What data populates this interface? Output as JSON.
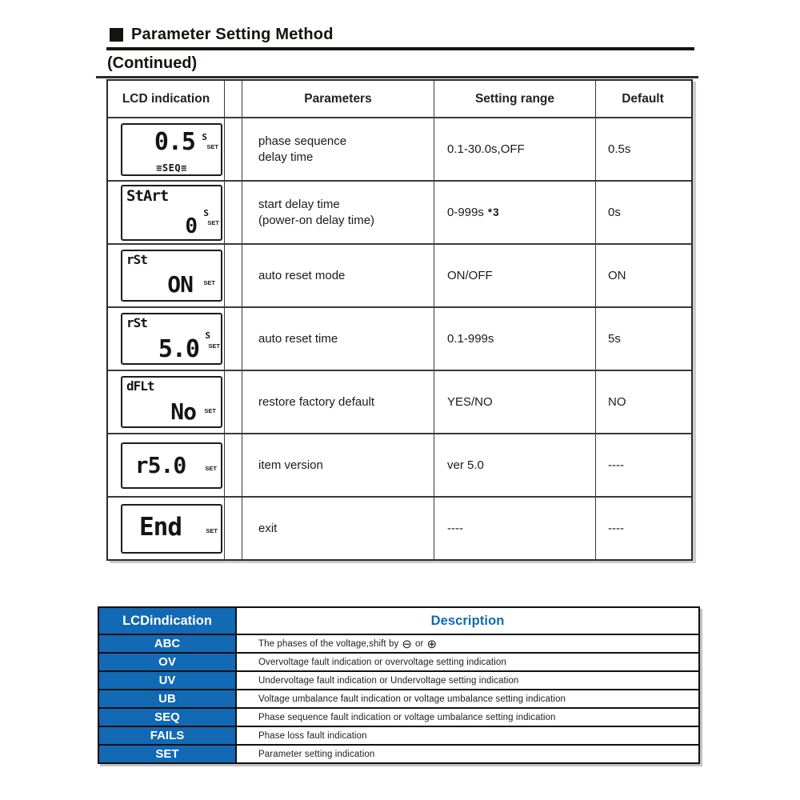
{
  "accent_blue": "#1269b4",
  "header": {
    "title": "Parameter Setting Method",
    "continued": "(Continued)"
  },
  "table1": {
    "headers": {
      "lcd": "LCD indication",
      "parameters": "Parameters",
      "range": "Setting range",
      "default": "Default"
    },
    "rows": [
      {
        "lcd": {
          "main": "0.5",
          "unit": "S",
          "set": "SET",
          "seq": "≡SEQ≡"
        },
        "param_lines": [
          "phase sequence",
          "delay time"
        ],
        "range": "0.1-30.0s,OFF",
        "default": "0.5s"
      },
      {
        "lcd": {
          "top": "StArt",
          "main": "0",
          "unit": "S",
          "set": "SET"
        },
        "param_lines": [
          "start delay time",
          "(power-on delay time)"
        ],
        "range": "0-999s",
        "range_sup": "*3",
        "default": "0s"
      },
      {
        "lcd": {
          "top": "rSt",
          "main": "ON",
          "set": "SET"
        },
        "param_lines": [
          "auto reset mode"
        ],
        "range": "ON/OFF",
        "default": "ON"
      },
      {
        "lcd": {
          "top": "rSt",
          "main": "5.0",
          "unit": "S",
          "set": "SET"
        },
        "param_lines": [
          "auto reset time"
        ],
        "range": "0.1-999s",
        "default": "5s"
      },
      {
        "lcd": {
          "top": "dFLt",
          "main": "No",
          "set": "SET"
        },
        "param_lines": [
          "restore factory default"
        ],
        "range": "YES/NO",
        "default": "NO"
      },
      {
        "lcd": {
          "main": "r5.0",
          "set": "SET"
        },
        "param_lines": [
          "item version"
        ],
        "range": "ver 5.0",
        "default": "----"
      },
      {
        "lcd": {
          "main": "End",
          "set": "SET"
        },
        "param_lines": [
          "exit"
        ],
        "range": "----",
        "default": "----"
      }
    ]
  },
  "legend": {
    "headers": {
      "label": "LCDindication",
      "description": "Description"
    },
    "abc_parts": {
      "prefix": "The phases of the voltage,shift by",
      "minus_glyph": "⊖",
      "or_text": "or",
      "plus_glyph": "⊕"
    },
    "rows": [
      {
        "label": "ABC",
        "description": ""
      },
      {
        "label": "OV",
        "description": "Overvoltage fault indication or overvoltage setting indication"
      },
      {
        "label": "UV",
        "description": "Undervoltage fault indication or Undervoltage setting indication"
      },
      {
        "label": "UB",
        "description": "Voltage umbalance  fault indication or voltage umbalance  setting indication"
      },
      {
        "label": "SEQ",
        "description": "Phase sequence  fault indication or voltage umbalance setting indication"
      },
      {
        "label": "FAILS",
        "description": "Phase loss fault indication"
      },
      {
        "label": "SET",
        "description": "Parameter setting indication"
      }
    ]
  }
}
